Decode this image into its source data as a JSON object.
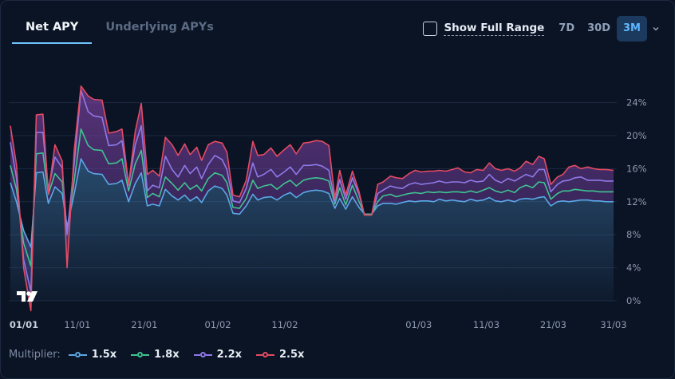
{
  "tabs": {
    "net_apy": "Net APY",
    "underlying": "Underlying APYs"
  },
  "controls": {
    "show_full_range": "Show Full Range",
    "ranges": [
      "7D",
      "30D",
      "3M"
    ],
    "active_range": "3M"
  },
  "legend": {
    "title": "Multiplier:",
    "items": [
      {
        "label": "1.5x",
        "color": "#5aa7e6"
      },
      {
        "label": "1.8x",
        "color": "#3fc391"
      },
      {
        "label": "2.2x",
        "color": "#8f79e8"
      },
      {
        "label": "2.5x",
        "color": "#e34b63"
      }
    ]
  },
  "chart_data": {
    "type": "area",
    "y_axis_position": "right",
    "ylim": [
      0,
      26
    ],
    "yticks": [
      "0%",
      "4%",
      "8%",
      "12%",
      "16%",
      "20%",
      "24%"
    ],
    "ytick_values": [
      0,
      4,
      8,
      12,
      16,
      20,
      24
    ],
    "xlim": [
      0,
      100
    ],
    "xticks": [
      {
        "label": "01/01",
        "x": 0
      },
      {
        "label": "11/01",
        "x": 11.1
      },
      {
        "label": "21/01",
        "x": 22.2
      },
      {
        "label": "01/02",
        "x": 34.4
      },
      {
        "label": "11/02",
        "x": 45.5
      },
      {
        "label": "01/03",
        "x": 67.7
      },
      {
        "label": "11/03",
        "x": 78.9
      },
      {
        "label": "21/03",
        "x": 90
      },
      {
        "label": "31/03",
        "x": 100
      }
    ],
    "x": [
      0,
      1,
      2.2,
      3.4,
      4.3,
      5.4,
      6.3,
      7.4,
      8.6,
      9.4,
      10.6,
      11.7,
      12.9,
      13.8,
      15.2,
      16.3,
      17.6,
      18.5,
      19.6,
      20.7,
      21.7,
      22.7,
      23.6,
      24.7,
      25.7,
      26.8,
      27.8,
      28.9,
      29.8,
      30.9,
      31.7,
      32.8,
      33.9,
      35.1,
      35.9,
      36.9,
      38.0,
      39.1,
      40.2,
      41.0,
      42.0,
      43.2,
      44.2,
      45.4,
      46.4,
      47.4,
      48.6,
      49.6,
      50.7,
      51.7,
      52.8,
      53.8,
      54.6,
      55.6,
      56.7,
      57.8,
      58.7,
      59.9,
      60.9,
      61.8,
      63.0,
      64.0,
      65.0,
      66.1,
      67.1,
      68.1,
      69.2,
      70.2,
      71.1,
      72.2,
      73.3,
      74.2,
      75.3,
      76.3,
      77.3,
      78.4,
      79.4,
      80.4,
      81.4,
      82.5,
      83.6,
      84.5,
      85.5,
      86.6,
      87.6,
      88.5,
      89.6,
      90.7,
      91.6,
      92.6,
      93.6,
      94.6,
      95.7,
      96.7,
      97.7,
      98.7,
      100
    ],
    "series": [
      {
        "name": "1.5x",
        "values": [
          14.3,
          12.0,
          8.5,
          6.5,
          15.5,
          15.6,
          11.8,
          13.8,
          13.0,
          9.0,
          13.0,
          17.2,
          15.7,
          15.4,
          15.3,
          14.1,
          14.2,
          14.6,
          12.0,
          14.2,
          15.5,
          11.5,
          11.7,
          11.5,
          13.5,
          12.7,
          12.2,
          12.8,
          12.1,
          12.6,
          11.9,
          13.3,
          13.9,
          13.6,
          12.8,
          10.6,
          10.5,
          11.5,
          12.9,
          12.2,
          12.5,
          12.6,
          12.2,
          12.8,
          13.1,
          12.5,
          13.1,
          13.3,
          13.4,
          13.3,
          13.0,
          11.2,
          12.4,
          11.1,
          12.6,
          11.3,
          10.5,
          10.5,
          11.5,
          11.8,
          11.8,
          11.7,
          11.9,
          12.1,
          12.0,
          12.1,
          12.1,
          12.0,
          12.3,
          12.1,
          12.2,
          12.1,
          12.0,
          12.3,
          12.1,
          12.2,
          12.5,
          12.1,
          12.0,
          12.2,
          12.0,
          12.3,
          12.4,
          12.3,
          12.5,
          12.6,
          11.5,
          12.0,
          12.1,
          12.0,
          12.1,
          12.2,
          12.2,
          12.1,
          12.1,
          12.0,
          12.0
        ]
      },
      {
        "name": "1.8x",
        "values": [
          16.4,
          13.5,
          7.0,
          4.2,
          17.8,
          17.9,
          12.9,
          15.4,
          14.4,
          8.5,
          14.6,
          20.8,
          18.8,
          18.3,
          18.2,
          16.6,
          16.7,
          17.2,
          13.3,
          16.6,
          18.2,
          12.5,
          13.0,
          12.6,
          15.0,
          14.2,
          13.4,
          14.3,
          13.5,
          14.0,
          13.3,
          14.8,
          15.5,
          15.2,
          14.3,
          11.3,
          11.2,
          12.4,
          14.6,
          13.6,
          13.9,
          14.1,
          13.5,
          14.2,
          14.6,
          13.9,
          14.6,
          14.8,
          14.9,
          14.8,
          14.5,
          11.7,
          13.7,
          11.6,
          14.0,
          12.0,
          10.5,
          10.5,
          12.0,
          12.7,
          12.9,
          12.6,
          12.8,
          13.0,
          13.1,
          13.0,
          13.2,
          13.1,
          13.2,
          13.1,
          13.2,
          13.2,
          13.1,
          13.3,
          13.1,
          13.4,
          13.7,
          13.3,
          13.1,
          13.4,
          13.1,
          13.7,
          14.0,
          13.7,
          14.4,
          14.3,
          12.3,
          13.0,
          13.3,
          13.3,
          13.5,
          13.4,
          13.3,
          13.3,
          13.2,
          13.2,
          13.2
        ]
      },
      {
        "name": "2.2x",
        "values": [
          19.2,
          14.9,
          5.0,
          1.1,
          20.4,
          20.4,
          13.5,
          17.4,
          16.1,
          8.0,
          16.7,
          25.5,
          22.9,
          22.4,
          22.2,
          18.8,
          18.9,
          19.4,
          14.0,
          18.9,
          21.2,
          13.3,
          14.0,
          13.7,
          17.5,
          15.9,
          15.0,
          16.4,
          15.4,
          16.2,
          14.8,
          16.5,
          17.6,
          17.1,
          15.9,
          12.1,
          11.9,
          13.6,
          16.7,
          15.0,
          15.3,
          15.9,
          15.0,
          15.6,
          16.2,
          15.3,
          16.4,
          16.4,
          16.5,
          16.3,
          15.8,
          12.0,
          14.7,
          12.3,
          14.9,
          12.9,
          10.4,
          10.4,
          13.0,
          13.4,
          13.9,
          13.7,
          13.6,
          14.1,
          14.3,
          14.1,
          14.2,
          14.3,
          14.5,
          14.3,
          14.4,
          14.4,
          14.3,
          14.6,
          14.4,
          14.5,
          15.3,
          14.6,
          14.3,
          14.8,
          14.5,
          14.9,
          15.3,
          15.0,
          15.9,
          15.9,
          13.2,
          14.1,
          14.5,
          14.6,
          14.9,
          15.0,
          14.6,
          14.6,
          14.6,
          14.5,
          14.5
        ]
      },
      {
        "name": "2.5x",
        "values": [
          21.2,
          16.5,
          4.0,
          -1.2,
          22.5,
          22.6,
          13.0,
          18.9,
          16.9,
          4.0,
          18.3,
          26.0,
          24.8,
          24.4,
          24.3,
          20.3,
          20.5,
          20.8,
          14.1,
          20.5,
          23.9,
          15.3,
          15.8,
          15.1,
          19.8,
          18.9,
          17.6,
          19.0,
          17.7,
          18.6,
          17.0,
          18.9,
          19.3,
          19.1,
          18.0,
          12.8,
          12.6,
          14.6,
          19.3,
          17.6,
          17.7,
          18.5,
          17.5,
          18.3,
          18.9,
          17.8,
          19.1,
          19.2,
          19.4,
          19.3,
          18.8,
          12.4,
          15.8,
          12.8,
          15.7,
          13.2,
          10.4,
          10.4,
          14.1,
          14.4,
          15.1,
          14.9,
          14.8,
          15.4,
          15.8,
          15.6,
          15.7,
          15.7,
          15.8,
          15.7,
          15.9,
          16.1,
          15.6,
          15.5,
          15.9,
          15.8,
          16.7,
          16.0,
          15.8,
          16.0,
          15.7,
          16.1,
          16.9,
          16.5,
          17.5,
          17.2,
          14.1,
          15.0,
          15.3,
          16.2,
          16.4,
          16.0,
          16.2,
          16.0,
          15.9,
          15.9,
          15.8
        ]
      }
    ]
  }
}
